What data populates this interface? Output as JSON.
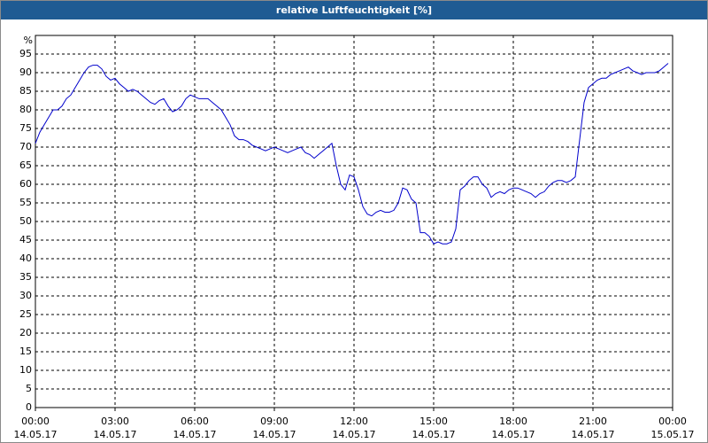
{
  "chart_data": {
    "type": "line",
    "title": "relative Luftfeuchtigkeit [%]",
    "y_unit": "%",
    "xlim": [
      0,
      1440
    ],
    "ylim": [
      0,
      100
    ],
    "xticks": [
      {
        "value": 0,
        "label": "00:00\n14.05.17"
      },
      {
        "value": 180,
        "label": "03:00\n14.05.17"
      },
      {
        "value": 360,
        "label": "06:00\n14.05.17"
      },
      {
        "value": 540,
        "label": "09:00\n14.05.17"
      },
      {
        "value": 720,
        "label": "12:00\n14.05.17"
      },
      {
        "value": 900,
        "label": "15:00\n14.05.17"
      },
      {
        "value": 1080,
        "label": "18:00\n14.05.17"
      },
      {
        "value": 1260,
        "label": "21:00\n14.05.17"
      },
      {
        "value": 1440,
        "label": "00:00\n15.05.17"
      }
    ],
    "yticks": [
      0,
      5,
      10,
      15,
      20,
      25,
      30,
      35,
      40,
      45,
      50,
      55,
      60,
      65,
      70,
      75,
      80,
      85,
      90,
      95
    ],
    "grid": true,
    "x": [
      0,
      10,
      20,
      30,
      40,
      50,
      60,
      70,
      80,
      90,
      100,
      110,
      120,
      130,
      140,
      150,
      160,
      170,
      180,
      190,
      200,
      210,
      220,
      230,
      240,
      250,
      260,
      270,
      280,
      290,
      300,
      310,
      320,
      330,
      340,
      350,
      360,
      370,
      380,
      390,
      400,
      410,
      420,
      430,
      440,
      450,
      460,
      470,
      480,
      490,
      500,
      510,
      520,
      530,
      540,
      550,
      560,
      570,
      580,
      590,
      600,
      610,
      620,
      630,
      640,
      650,
      660,
      670,
      680,
      690,
      700,
      710,
      720,
      730,
      740,
      750,
      760,
      770,
      780,
      790,
      800,
      810,
      820,
      830,
      840,
      850,
      860,
      870,
      880,
      890,
      900,
      910,
      920,
      930,
      940,
      950,
      960,
      970,
      980,
      990,
      1000,
      1010,
      1020,
      1030,
      1040,
      1050,
      1060,
      1070,
      1080,
      1090,
      1100,
      1110,
      1120,
      1130,
      1140,
      1150,
      1160,
      1170,
      1180,
      1190,
      1200,
      1210,
      1220,
      1230,
      1240,
      1250,
      1260,
      1270,
      1280,
      1290,
      1300,
      1310,
      1320,
      1330,
      1340,
      1350,
      1360,
      1370,
      1380,
      1390,
      1400,
      1410,
      1420,
      1430
    ],
    "series": [
      {
        "name": "relative Luftfeuchtigkeit",
        "color": "#0000cc",
        "values": [
          71,
          74,
          76,
          78,
          80,
          80,
          81,
          83,
          84,
          86,
          88,
          90,
          91.5,
          92,
          92,
          91,
          89,
          88,
          88.5,
          87,
          86,
          85,
          85.5,
          85,
          84,
          83,
          82,
          81.5,
          82.5,
          83,
          81,
          79.5,
          80,
          81,
          83,
          84,
          83.5,
          83,
          83,
          83,
          82,
          81,
          80,
          78,
          76,
          73,
          72,
          72,
          71.5,
          70.5,
          70,
          69.5,
          69,
          69.5,
          70,
          69.5,
          69,
          68.5,
          69,
          69.5,
          70,
          68.5,
          68,
          67,
          68,
          69,
          70,
          71,
          65,
          60,
          58.5,
          62.5,
          62,
          58.5,
          54,
          52,
          51.5,
          52.5,
          53,
          52.5,
          52.5,
          53,
          55,
          59,
          58.5,
          56,
          55,
          47,
          47,
          46,
          44,
          44.5,
          44,
          44,
          44.5,
          48,
          58.5,
          59.5,
          61,
          62,
          62,
          60,
          59,
          56.5,
          57.5,
          58,
          57.5,
          58.5,
          59,
          59,
          58.5,
          58,
          57.5,
          56.5,
          57.5,
          58,
          59.5,
          60.5,
          61,
          61,
          60.5,
          61,
          62,
          72,
          82,
          86,
          87,
          88,
          88.5,
          88.5,
          89.5,
          90,
          90.5,
          91,
          91.5,
          90.5,
          90,
          89.5,
          90,
          90,
          90,
          90.5,
          91.5,
          92.5
        ]
      }
    ]
  }
}
